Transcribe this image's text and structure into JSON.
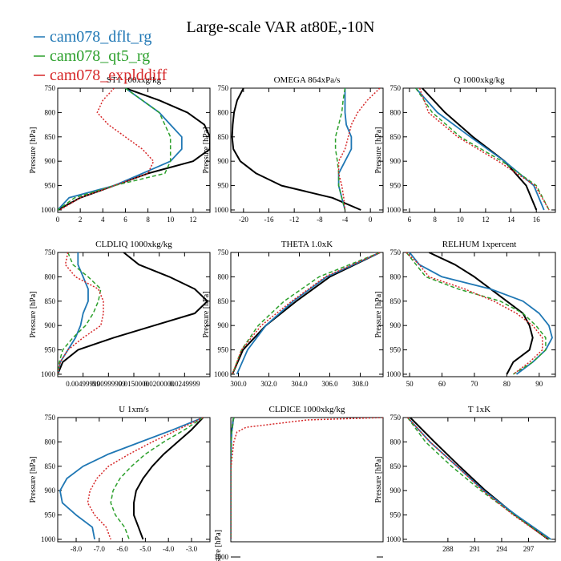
{
  "figure": {
    "title": "Large-scale VAR at80E,-10N",
    "legend": [
      {
        "name": "cam078_dflt_rg",
        "color": "#1f77b4",
        "dash": "solid"
      },
      {
        "name": "cam078_qt5_rg",
        "color": "#2ca02c",
        "dash": "dashed"
      },
      {
        "name": "cam078_explddiff",
        "color": "#d62728",
        "dash": "dotted"
      }
    ],
    "series_colors": [
      "#000000",
      "#1f77b4",
      "#2ca02c",
      "#d62728"
    ]
  },
  "chart_data": [
    {
      "type": "line",
      "title": "ST1 100xxg/kg",
      "ylabel": "Pressure [hPa]",
      "xlim": [
        0,
        13.5
      ],
      "ylim": [
        1005,
        750
      ],
      "xticks": [
        0,
        2,
        4,
        6,
        8,
        10,
        12
      ],
      "xtick_labels": [
        "0",
        "2",
        "4",
        "6",
        "8",
        "10",
        "12"
      ],
      "yticks": [
        750,
        800,
        850,
        900,
        950,
        1000
      ],
      "y": [
        750,
        775,
        800,
        825,
        850,
        875,
        900,
        925,
        950,
        975,
        1000
      ],
      "series": [
        {
          "values": [
            6,
            9,
            11.5,
            13,
            13.5,
            13.5,
            12,
            8,
            5,
            2,
            0
          ]
        },
        {
          "values": [
            6,
            7.5,
            9,
            10,
            11,
            11,
            10,
            7.5,
            5,
            1,
            0
          ]
        },
        {
          "values": [
            6,
            7.5,
            9,
            9.5,
            10,
            10,
            10,
            9.5,
            5,
            1.5,
            0
          ]
        },
        {
          "values": [
            5,
            4,
            3.5,
            4.5,
            6,
            7.5,
            8.5,
            8,
            5,
            2,
            0.2
          ]
        }
      ]
    },
    {
      "type": "line",
      "title": "OMEGA 864xPa/s",
      "ylabel": "Pressure [hPa]",
      "xlim": [
        -22,
        2
      ],
      "ylim": [
        1005,
        750
      ],
      "xticks": [
        -20,
        -16,
        -12,
        -8,
        -4,
        0
      ],
      "xtick_labels": [
        "-20",
        "-16",
        "-12",
        "-8",
        "-4",
        "0"
      ],
      "yticks": [
        750,
        800,
        850,
        900,
        950,
        1000
      ],
      "y": [
        750,
        775,
        800,
        825,
        850,
        875,
        900,
        925,
        950,
        975,
        1000
      ],
      "series": [
        {
          "values": [
            -20,
            -21,
            -21.5,
            -21.7,
            -21.8,
            -21.6,
            -20.5,
            -18,
            -14,
            -6,
            -1.5
          ]
        },
        {
          "values": [
            -4,
            -4,
            -4,
            -3.8,
            -3,
            -3,
            -4,
            -5,
            -5,
            -4.5,
            -4
          ]
        },
        {
          "values": [
            -4,
            -4.3,
            -4.5,
            -5,
            -5.5,
            -5.5,
            -5.2,
            -5,
            -5,
            -4.5,
            -4
          ]
        },
        {
          "values": [
            1.5,
            -0.5,
            -2,
            -3,
            -3.5,
            -4,
            -5,
            -5,
            -4.5,
            -4.2,
            -4
          ]
        }
      ]
    },
    {
      "type": "line",
      "title": "Q 1000xkg/kg",
      "ylabel": "Pressure [hPa]",
      "xlim": [
        5.5,
        17.5
      ],
      "ylim": [
        1005,
        750
      ],
      "xticks": [
        6,
        8,
        10,
        12,
        14,
        16
      ],
      "xtick_labels": [
        "6",
        "8",
        "10",
        "12",
        "14",
        "16"
      ],
      "yticks": [
        750,
        800,
        850,
        900,
        950,
        1000
      ],
      "y": [
        750,
        800,
        850,
        900,
        950,
        1000
      ],
      "series": [
        {
          "values": [
            7,
            8.8,
            11,
            13.5,
            15.2,
            16
          ]
        },
        {
          "values": [
            6.5,
            8.2,
            10.8,
            13.5,
            15.8,
            16.6
          ]
        },
        {
          "values": [
            6.5,
            7.8,
            10,
            13.3,
            16,
            17
          ]
        },
        {
          "values": [
            6.8,
            7.5,
            9.8,
            13,
            15.9,
            17
          ]
        }
      ]
    },
    {
      "type": "line",
      "title": "CLDLIQ 1000xkg/kg",
      "ylabel": "Pressure [hPa]",
      "xlim": [
        0,
        0.03
      ],
      "ylim": [
        1005,
        750
      ],
      "xticks": [
        0.005,
        0.01,
        0.015,
        0.02,
        0.025
      ],
      "xtick_labels": [
        "0.00499999",
        "0.00999999",
        "0.0150000",
        "0.0200000",
        "0.0249999"
      ],
      "yticks": [
        750,
        800,
        850,
        900,
        950,
        1000
      ],
      "y": [
        750,
        775,
        800,
        825,
        850,
        875,
        900,
        925,
        950,
        975,
        1000
      ],
      "series": [
        {
          "values": [
            0.013,
            0.016,
            0.022,
            0.027,
            0.0295,
            0.027,
            0.019,
            0.011,
            0.004,
            0.001,
            0
          ]
        },
        {
          "values": [
            0.004,
            0.004,
            0.005,
            0.006,
            0.006,
            0.005,
            0.0045,
            0.0035,
            0.002,
            0.0005,
            0
          ]
        },
        {
          "values": [
            0.002,
            0.003,
            0.006,
            0.0085,
            0.008,
            0.007,
            0.0055,
            0.003,
            0.001,
            0.0003,
            0
          ]
        },
        {
          "values": [
            0.002,
            0.0015,
            0.0035,
            0.008,
            0.009,
            0.009,
            0.0085,
            0.005,
            0.002,
            0.0005,
            0
          ]
        }
      ]
    },
    {
      "type": "line",
      "title": "THETA 1.0xK",
      "ylabel": "Pressure [hPa]",
      "xlim": [
        299.5,
        309.5
      ],
      "ylim": [
        1005,
        750
      ],
      "xticks": [
        300,
        302,
        304,
        306,
        308
      ],
      "xtick_labels": [
        "300.0",
        "302.0",
        "304.0",
        "306.0",
        "308.0"
      ],
      "yticks": [
        750,
        800,
        850,
        900,
        950,
        1000
      ],
      "y": [
        750,
        800,
        850,
        900,
        950,
        1000
      ],
      "series": [
        {
          "values": [
            309.3,
            306,
            303.8,
            301.8,
            300.3,
            299.6
          ]
        },
        {
          "values": [
            309.3,
            305.8,
            303.6,
            301.8,
            300.6,
            299.9
          ]
        },
        {
          "values": [
            309.3,
            305.3,
            303,
            301.3,
            300.2,
            299.6
          ]
        },
        {
          "values": [
            309.3,
            305.7,
            303.5,
            301.5,
            300.2,
            299.6
          ]
        }
      ]
    },
    {
      "type": "line",
      "title": "RELHUM 1xpercent",
      "ylabel": "Pressure [hPa]",
      "xlim": [
        48,
        95
      ],
      "ylim": [
        1005,
        750
      ],
      "xticks": [
        50,
        60,
        70,
        80,
        90
      ],
      "xtick_labels": [
        "50",
        "60",
        "70",
        "80",
        "90"
      ],
      "yticks": [
        750,
        800,
        850,
        900,
        950,
        1000
      ],
      "y": [
        750,
        775,
        800,
        825,
        850,
        875,
        900,
        925,
        950,
        975,
        1000
      ],
      "series": [
        {
          "values": [
            56,
            64,
            70,
            75,
            80,
            85,
            87,
            88,
            87,
            82,
            80
          ]
        },
        {
          "values": [
            50,
            53,
            60,
            75,
            85,
            90,
            93,
            94,
            92,
            88,
            83
          ]
        },
        {
          "values": [
            49,
            52,
            55,
            65,
            78,
            85,
            89,
            92,
            92,
            88,
            82
          ]
        },
        {
          "values": [
            49,
            53,
            56,
            67,
            76,
            83,
            88,
            91,
            91,
            87,
            82
          ]
        }
      ]
    },
    {
      "type": "line",
      "title": "U 1xm/s",
      "ylabel": "Pressure [hPa]",
      "xlim": [
        -8.8,
        -2.2
      ],
      "ylim": [
        1005,
        750
      ],
      "xticks": [
        -8,
        -7,
        -6,
        -5,
        -4,
        -3
      ],
      "xtick_labels": [
        "-8.0",
        "-7.0",
        "-6.0",
        "-5.0",
        "-4.0",
        "-3.0"
      ],
      "yticks": [
        750,
        800,
        850,
        900,
        950,
        1000
      ],
      "y": [
        750,
        775,
        800,
        825,
        850,
        875,
        900,
        925,
        950,
        975,
        1000
      ],
      "series": [
        {
          "values": [
            -2.5,
            -3,
            -3.6,
            -4.2,
            -4.7,
            -5.1,
            -5.4,
            -5.5,
            -5.5,
            -5.3,
            -5.1
          ]
        },
        {
          "values": [
            -2.5,
            -3.8,
            -5.2,
            -6.6,
            -7.7,
            -8.4,
            -8.7,
            -8.6,
            -8,
            -7.3,
            -7.2
          ]
        },
        {
          "values": [
            -2.5,
            -3.3,
            -4.2,
            -5,
            -5.6,
            -6.1,
            -6.4,
            -6.5,
            -6.3,
            -5.9,
            -5.7
          ]
        },
        {
          "values": [
            -2.5,
            -3.6,
            -4.7,
            -5.7,
            -6.6,
            -7.1,
            -7.4,
            -7.5,
            -7.2,
            -6.7,
            -6.5
          ]
        }
      ]
    },
    {
      "type": "line",
      "title": "CLDICE 1000xkg/kg",
      "ylabel": "",
      "xlim": [
        0,
        1
      ],
      "ylim": [
        1005,
        750
      ],
      "xticks": [],
      "xtick_labels": [],
      "yticks": [],
      "y": [
        750,
        755,
        770,
        780,
        800,
        840,
        860,
        1000
      ],
      "series": [
        {
          "values": [
            0.02,
            0.015,
            0.01,
            0.005,
            0.002,
            0,
            0,
            0
          ]
        },
        {
          "values": [
            0.02,
            0.015,
            0.01,
            0.006,
            0.002,
            0,
            0,
            0
          ]
        },
        {
          "values": [
            0.02,
            0.015,
            0.01,
            0.006,
            0.002,
            0,
            0,
            0
          ]
        },
        {
          "values": [
            1.0,
            0.5,
            0.1,
            0.04,
            0.02,
            0.005,
            0,
            0
          ]
        }
      ]
    },
    {
      "type": "line",
      "title": "T 1xK",
      "ylabel": "Pressure [hPa]",
      "xlim": [
        283,
        300
      ],
      "ylim": [
        1005,
        750
      ],
      "xticks": [
        288,
        291,
        294,
        297
      ],
      "xtick_labels": [
        "288",
        "291",
        "294",
        "297"
      ],
      "yticks": [
        750,
        800,
        850,
        900,
        950,
        1000
      ],
      "y": [
        750,
        800,
        850,
        900,
        950,
        1000
      ],
      "series": [
        {
          "values": [
            283.8,
            286.5,
            289.3,
            292.2,
            295.5,
            299.2
          ]
        },
        {
          "values": [
            283.5,
            286,
            289,
            292,
            295.6,
            299.5
          ]
        },
        {
          "values": [
            283.5,
            285.5,
            288.4,
            291.7,
            295.4,
            299.3
          ]
        },
        {
          "values": [
            283.5,
            286,
            289,
            291.9,
            295.3,
            299.2
          ]
        }
      ]
    }
  ],
  "bottom_fragment": {
    "ylabel": "Pressure [hPa]",
    "tick": "1000"
  }
}
